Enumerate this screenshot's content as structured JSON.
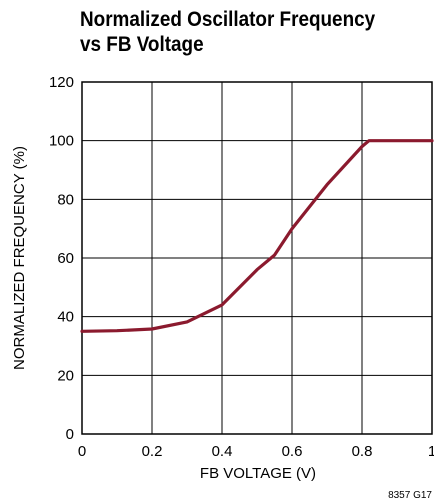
{
  "chart_data": {
    "type": "line",
    "title_lines": [
      "Normalized Oscillator Frequency",
      "vs FB Voltage"
    ],
    "xlabel": "FB VOLTAGE (V)",
    "ylabel": "NORMALIZED FREQUENCY (%)",
    "xlim": [
      0,
      1
    ],
    "ylim": [
      0,
      120
    ],
    "xticks": [
      "0",
      "0.2",
      "0.4",
      "0.6",
      "0.8",
      "1"
    ],
    "yticks": [
      "0",
      "20",
      "40",
      "60",
      "80",
      "100",
      "120"
    ],
    "grid": true,
    "series": [
      {
        "color": "#8b1a2e",
        "x": [
          0,
          0.1,
          0.2,
          0.3,
          0.4,
          0.5,
          0.55,
          0.6,
          0.7,
          0.8,
          0.82,
          0.9,
          1.0
        ],
        "y": [
          35,
          35.2,
          35.8,
          38.2,
          44,
          56,
          61,
          70,
          85,
          98,
          100,
          100,
          100
        ]
      }
    ],
    "footnote": "8357 G17"
  }
}
